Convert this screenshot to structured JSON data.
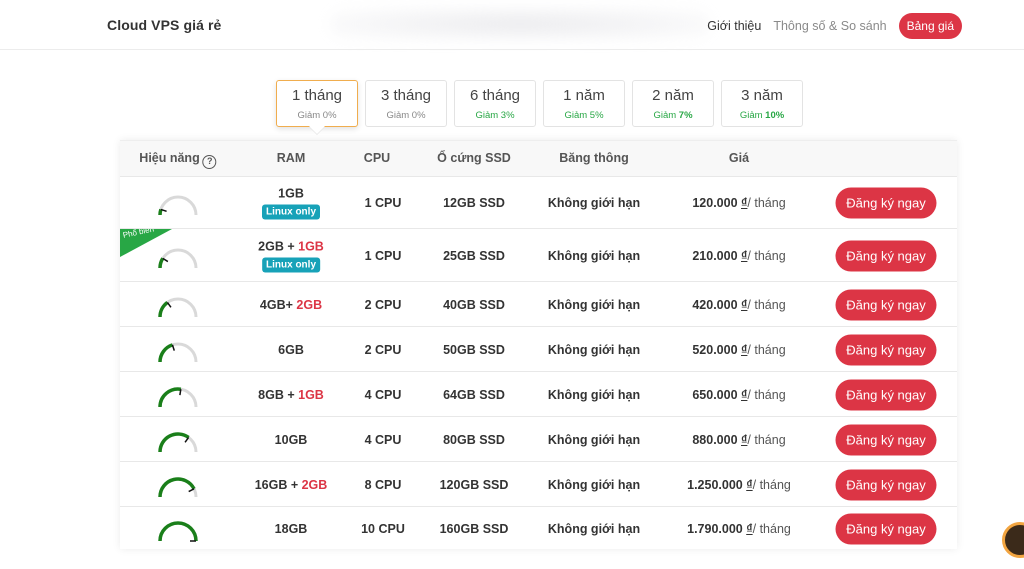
{
  "header": {
    "brand": "Cloud VPS giá rẻ",
    "nav": [
      {
        "label": "Giới thiệu"
      },
      {
        "label": "Thông số & So sánh"
      },
      {
        "label": "Bảng giá"
      }
    ]
  },
  "tabs": [
    {
      "label": "1 tháng",
      "discount": "Giảm 0%",
      "active": true
    },
    {
      "label": "3 tháng",
      "discount": "Giảm 0%"
    },
    {
      "label": "6 tháng",
      "discount": "Giảm 3%"
    },
    {
      "label": "1 năm",
      "discount": "Giảm 5%"
    },
    {
      "label": "2 năm",
      "discount_prefix": "Giảm ",
      "discount_bold": "7%"
    },
    {
      "label": "3 năm",
      "discount_prefix": "Giảm ",
      "discount_bold": "10%"
    }
  ],
  "table": {
    "headers": {
      "performance": "Hiệu năng",
      "ram": "RAM",
      "cpu": "CPU",
      "ssd": "Ổ cứng SSD",
      "bandwidth": "Băng thông",
      "price": "Giá"
    },
    "help_icon_glyph": "?",
    "popular_label": "Phổ biến",
    "price_currency": "₫",
    "price_unit": "/ tháng",
    "button_label": "Đăng ký ngay",
    "rows": [
      {
        "performance": 0.1,
        "ram": "1GB",
        "ram_extra": "",
        "badge": "Linux only",
        "cpu": "1 CPU",
        "ssd": "12GB SSD",
        "bandwidth": "Không giới hạn",
        "price": "120.000"
      },
      {
        "performance": 0.18,
        "ram": "2GB + ",
        "ram_extra": "1GB",
        "badge": "Linux only",
        "cpu": "1 CPU",
        "ssd": "25GB SSD",
        "bandwidth": "Không giới hạn",
        "price": "210.000",
        "popular": true
      },
      {
        "performance": 0.3,
        "ram": "4GB+ ",
        "ram_extra": "2GB",
        "badge": "",
        "cpu": "2 CPU",
        "ssd": "40GB SSD",
        "bandwidth": "Không giới hạn",
        "price": "420.000"
      },
      {
        "performance": 0.4,
        "ram": "6GB",
        "ram_extra": "",
        "badge": "",
        "cpu": "2 CPU",
        "ssd": "50GB SSD",
        "bandwidth": "Không giới hạn",
        "price": "520.000"
      },
      {
        "performance": 0.55,
        "ram": "8GB + ",
        "ram_extra": "1GB",
        "badge": "",
        "cpu": "4 CPU",
        "ssd": "64GB SSD",
        "bandwidth": "Không giới hạn",
        "price": "650.000"
      },
      {
        "performance": 0.7,
        "ram": "10GB",
        "ram_extra": "",
        "badge": "",
        "cpu": "4 CPU",
        "ssd": "80GB SSD",
        "bandwidth": "Không giới hạn",
        "price": "880.000"
      },
      {
        "performance": 0.85,
        "ram": "16GB + ",
        "ram_extra": "2GB",
        "badge": "",
        "cpu": "8 CPU",
        "ssd": "120GB SSD",
        "bandwidth": "Không giới hạn",
        "price": "1.250.000"
      },
      {
        "performance": 1.0,
        "ram": "18GB",
        "ram_extra": "",
        "badge": "",
        "cpu": "10 CPU",
        "ssd": "160GB SSD",
        "bandwidth": "Không giới hạn",
        "price": "1.790.000"
      }
    ]
  },
  "colors": {
    "accent": "#dc3545",
    "gauge_fill": "#1a7f1a",
    "gauge_track": "#d9d9d9",
    "badge": "#17a2b8",
    "popular": "#28a745",
    "active_tab_border": "#f0ad4e"
  }
}
